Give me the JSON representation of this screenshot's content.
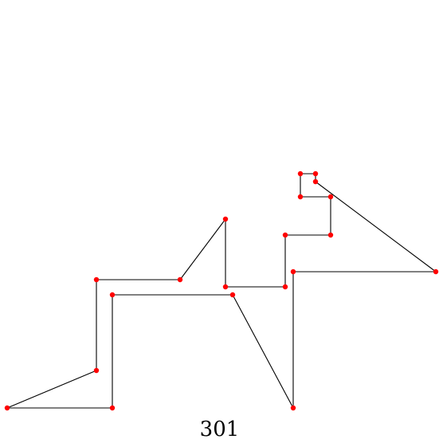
{
  "figure": {
    "caption": "301",
    "colors": {
      "edge": "#000000",
      "node": "#ff0000",
      "background": "#ffffff"
    }
  }
}
